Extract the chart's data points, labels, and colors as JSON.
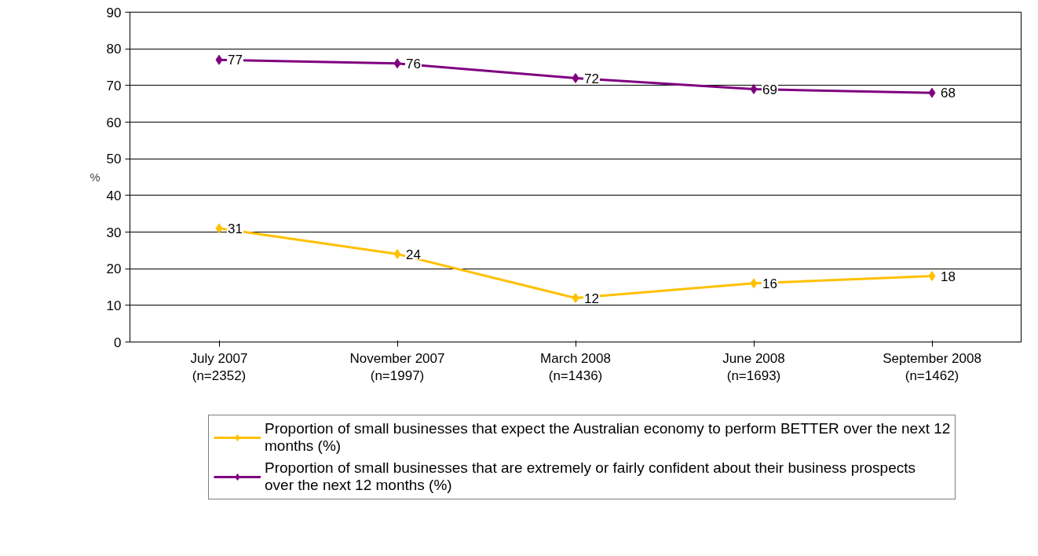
{
  "chart_data": {
    "type": "line",
    "ylabel": "%",
    "categories": [
      "July 2007\n(n=2352)",
      "November 2007\n(n=1997)",
      "March 2008\n(n=1436)",
      "June 2008\n(n=1693)",
      "September 2008\n(n=1462)"
    ],
    "series": [
      {
        "name": "Proportion of small businesses that expect the Australian economy to perform BETTER over the next 12 months (%)",
        "color": "#ffc000",
        "values": [
          31,
          24,
          12,
          16,
          18
        ]
      },
      {
        "name": "Proportion of small businesses that are extremely or fairly confident about their business prospects over the next 12 months (%)",
        "color": "#800080",
        "values": [
          77,
          76,
          72,
          69,
          68
        ]
      }
    ],
    "ylim": [
      0,
      90
    ],
    "yticks": [
      0,
      10,
      20,
      30,
      40,
      50,
      60,
      70,
      80,
      90
    ],
    "grid": "y",
    "legend": "bottom",
    "marker": "diamond",
    "line_style": "solid",
    "data_labels": true
  }
}
